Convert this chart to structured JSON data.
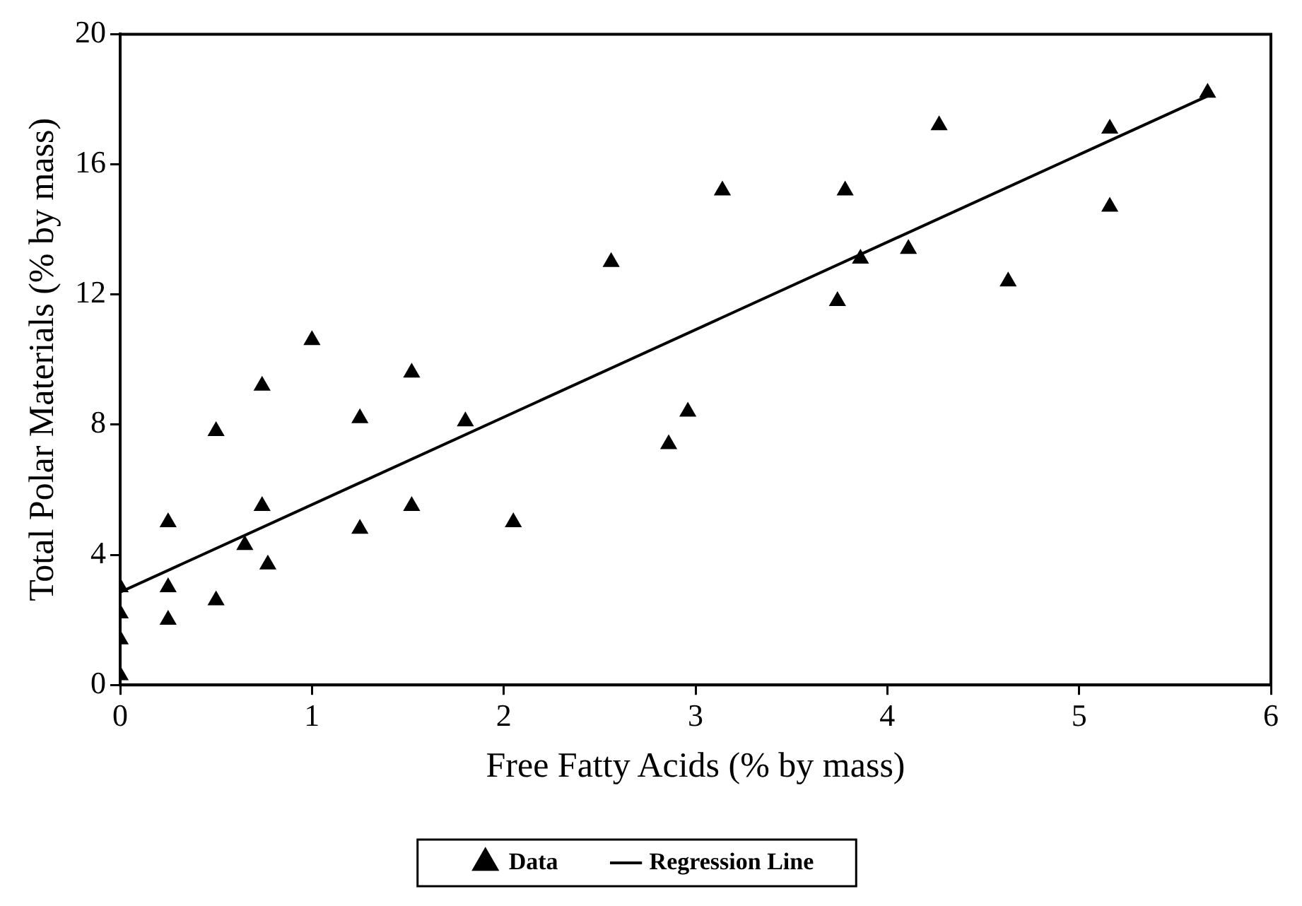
{
  "chart_data": {
    "type": "scatter",
    "xlabel": "Free Fatty Acids (% by mass)",
    "ylabel": "Total Polar Materials (% by mass)",
    "xlim": [
      0,
      6
    ],
    "xticks": [
      0,
      1,
      2,
      3,
      4,
      5,
      6
    ],
    "ylim": [
      0,
      20
    ],
    "yticks": [
      0,
      4,
      8,
      12,
      16,
      20
    ],
    "grid": false,
    "legend": "bottom",
    "series": [
      {
        "name": "Data",
        "marker": "triangle",
        "color": "#000000",
        "x": [
          0,
          0,
          0,
          0,
          0.25,
          0.25,
          0.25,
          0.5,
          0.5,
          0.65,
          0.74,
          0.74,
          0.77,
          1.0,
          1.25,
          1.25,
          1.52,
          1.52,
          1.8,
          2.05,
          2.56,
          2.86,
          2.96,
          3.14,
          3.74,
          3.78,
          3.86,
          4.11,
          4.27,
          4.63,
          5.16,
          5.16,
          5.67
        ],
        "values": [
          0.3,
          1.4,
          2.2,
          3.0,
          5.0,
          3.0,
          2.0,
          7.8,
          2.6,
          4.3,
          9.2,
          5.5,
          3.7,
          10.6,
          8.2,
          4.8,
          9.6,
          5.5,
          8.1,
          5.0,
          13.0,
          7.4,
          8.4,
          15.2,
          11.8,
          15.2,
          13.1,
          13.4,
          17.2,
          12.4,
          17.1,
          14.7,
          18.2
        ]
      },
      {
        "name": "Regression Line",
        "type": "line",
        "marker": "none",
        "line_style": "solid",
        "color": "#000000",
        "x": [
          0,
          5.67
        ],
        "values": [
          2.85,
          18.1
        ]
      }
    ]
  }
}
